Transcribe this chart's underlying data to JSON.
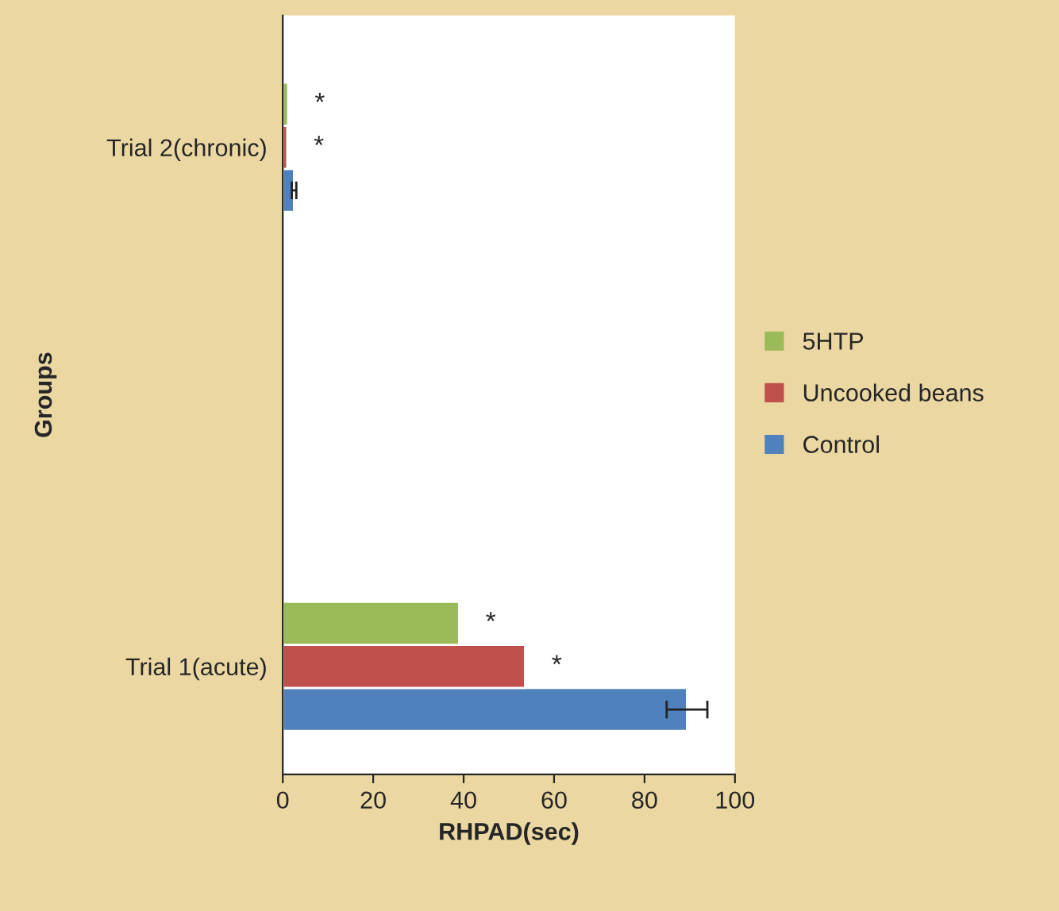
{
  "chart_data": {
    "type": "bar",
    "orientation": "horizontal",
    "xlabel": "RHPAD(sec)",
    "ylabel": "Groups",
    "categories": [
      "Trial 2(chronic)",
      "Trial 1(acute)"
    ],
    "series": [
      {
        "name": "Control",
        "color": "#4f81bd",
        "values": [
          2.5,
          89.4
        ],
        "errors": [
          0.5,
          4.5
        ]
      },
      {
        "name": "Uncooked beans",
        "color": "#c0504d",
        "values": [
          1.0,
          53.6
        ],
        "value_labels": [
          "*",
          "*"
        ]
      },
      {
        "name": "5HTP",
        "color": "#9bbb59",
        "values": [
          1.2,
          39.0
        ],
        "value_labels": [
          "*",
          "*"
        ]
      }
    ],
    "xlim": [
      0,
      100
    ],
    "xticks": [
      0,
      20,
      40,
      60,
      80,
      100
    ],
    "grid": false,
    "legend": "right"
  }
}
